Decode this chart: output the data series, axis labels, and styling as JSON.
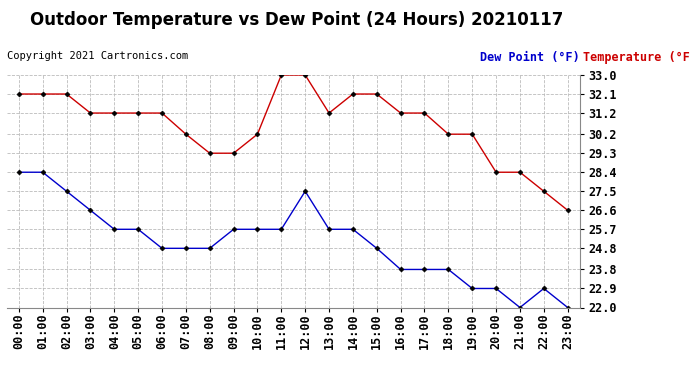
{
  "title": "Outdoor Temperature vs Dew Point (24 Hours) 20210117",
  "copyright": "Copyright 2021 Cartronics.com",
  "legend_dew": "Dew Point (°F)",
  "legend_temp": "Temperature (°F)",
  "x_labels": [
    "00:00",
    "01:00",
    "02:00",
    "03:00",
    "04:00",
    "05:00",
    "06:00",
    "07:00",
    "08:00",
    "09:00",
    "10:00",
    "11:00",
    "12:00",
    "13:00",
    "14:00",
    "15:00",
    "16:00",
    "17:00",
    "18:00",
    "19:00",
    "20:00",
    "21:00",
    "22:00",
    "23:00"
  ],
  "temperature": [
    32.1,
    32.1,
    32.1,
    31.2,
    31.2,
    31.2,
    31.2,
    30.2,
    29.3,
    29.3,
    30.2,
    33.0,
    33.0,
    31.2,
    32.1,
    32.1,
    31.2,
    31.2,
    30.2,
    30.2,
    28.4,
    28.4,
    27.5,
    26.6
  ],
  "dew_point": [
    28.4,
    28.4,
    27.5,
    26.6,
    25.7,
    25.7,
    24.8,
    24.8,
    24.8,
    25.7,
    25.7,
    25.7,
    27.5,
    25.7,
    25.7,
    24.8,
    23.8,
    23.8,
    23.8,
    22.9,
    22.9,
    22.0,
    22.9,
    22.0
  ],
  "ylim_min": 22.0,
  "ylim_max": 33.0,
  "yticks": [
    22.0,
    22.9,
    23.8,
    24.8,
    25.7,
    26.6,
    27.5,
    28.4,
    29.3,
    30.2,
    31.2,
    32.1,
    33.0
  ],
  "temp_color": "#cc0000",
  "dew_color": "#0000cc",
  "background_color": "#ffffff",
  "grid_color": "#bbbbbb",
  "title_fontsize": 12,
  "axis_fontsize": 8.5,
  "copyright_fontsize": 7.5,
  "legend_fontsize": 8.5
}
